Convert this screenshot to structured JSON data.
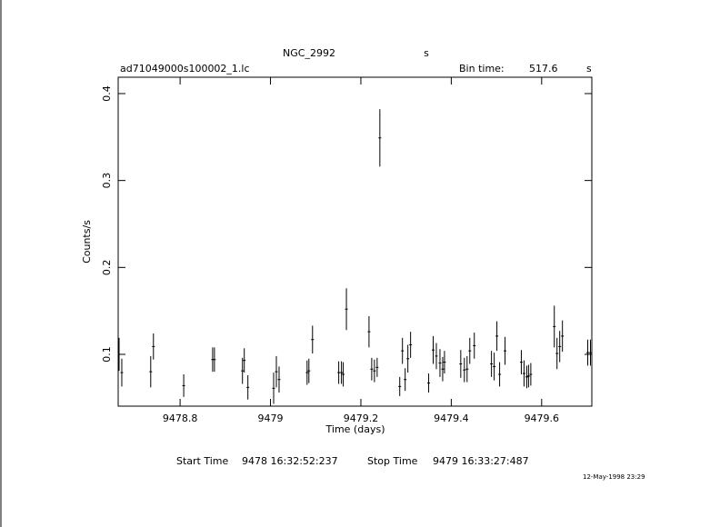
{
  "header": {
    "object": "NGC_2992",
    "object_unit": "s",
    "file": "ad71049000s100002_1.lc",
    "bin_label": "Bin time:",
    "bin_value": "517.6",
    "bin_unit": "s"
  },
  "footer": {
    "start_label": "Start Time",
    "start_value": "9478 16:32:52:237",
    "stop_label": "Stop Time",
    "stop_value": "9479 16:33:27:487",
    "date": "12-May-1998 23:29"
  },
  "chart_data": {
    "type": "errorbar",
    "xlabel": "Time (days)",
    "ylabel": "Counts/s",
    "x": [
      9478.665,
      9478.671,
      9478.735,
      9478.741,
      9478.808,
      9478.872,
      9478.876,
      9478.938,
      9478.942,
      9478.95,
      9479.007,
      9479.013,
      9479.019,
      9479.081,
      9479.085,
      9479.093,
      9479.151,
      9479.157,
      9479.161,
      9479.168,
      9479.218,
      9479.224,
      9479.23,
      9479.236,
      9479.242,
      9479.286,
      9479.292,
      9479.298,
      9479.304,
      9479.31,
      9479.35,
      9479.36,
      9479.367,
      9479.375,
      9479.381,
      9479.385,
      9479.421,
      9479.429,
      9479.435,
      9479.441,
      9479.451,
      9479.489,
      9479.495,
      9479.501,
      9479.507,
      9479.519,
      9479.555,
      9479.561,
      9479.567,
      9479.571,
      9479.576,
      9479.628,
      9479.634,
      9479.64,
      9479.646,
      9479.702,
      9479.708
    ],
    "values": [
      0.1,
      0.079,
      0.08,
      0.109,
      0.064,
      0.094,
      0.094,
      0.081,
      0.093,
      0.062,
      0.061,
      0.08,
      0.071,
      0.079,
      0.081,
      0.117,
      0.079,
      0.079,
      0.077,
      0.152,
      0.126,
      0.083,
      0.081,
      0.085,
      0.349,
      0.063,
      0.104,
      0.071,
      0.095,
      0.111,
      0.067,
      0.105,
      0.098,
      0.09,
      0.083,
      0.091,
      0.089,
      0.082,
      0.083,
      0.104,
      0.11,
      0.089,
      0.086,
      0.121,
      0.077,
      0.104,
      0.091,
      0.078,
      0.074,
      0.075,
      0.077,
      0.132,
      0.101,
      0.109,
      0.121,
      0.102,
      0.102
    ],
    "errors": [
      0.019,
      0.016,
      0.018,
      0.015,
      0.013,
      0.014,
      0.014,
      0.015,
      0.014,
      0.014,
      0.018,
      0.018,
      0.015,
      0.014,
      0.014,
      0.016,
      0.013,
      0.013,
      0.014,
      0.024,
      0.018,
      0.013,
      0.013,
      0.011,
      0.033,
      0.011,
      0.015,
      0.013,
      0.016,
      0.015,
      0.011,
      0.016,
      0.015,
      0.016,
      0.014,
      0.013,
      0.016,
      0.014,
      0.015,
      0.015,
      0.015,
      0.015,
      0.016,
      0.017,
      0.014,
      0.016,
      0.014,
      0.015,
      0.013,
      0.013,
      0.013,
      0.024,
      0.018,
      0.018,
      0.018,
      0.015,
      0.015
    ],
    "color": "#000000",
    "xlim": [
      9478.663,
      9479.711
    ],
    "xticks": [
      9478.8,
      9479,
      9479.2,
      9479.4,
      9479.6
    ],
    "ylim": [
      0.0404,
      0.4188
    ],
    "yticks": [
      0.1,
      0.2,
      0.3,
      0.4
    ]
  }
}
